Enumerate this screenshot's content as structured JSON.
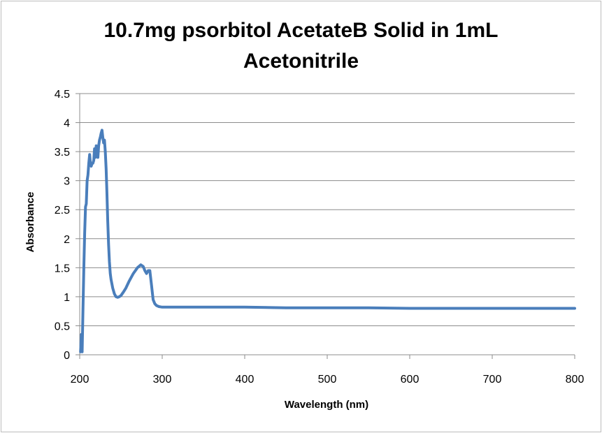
{
  "chart_data": {
    "type": "line",
    "title_lines": [
      "10.7mg psorbitol AcetateB Solid in 1mL",
      "Acetonitrile"
    ],
    "xlabel": "Wavelength (nm)",
    "ylabel": "Absorbance",
    "xlim": [
      200,
      800
    ],
    "ylim": [
      0,
      4.5
    ],
    "x_ticks": [
      200,
      300,
      400,
      500,
      600,
      700,
      800
    ],
    "y_ticks": [
      0,
      0.5,
      1,
      1.5,
      2,
      2.5,
      3,
      3.5,
      4,
      4.5
    ],
    "y_tick_labels": [
      "0",
      "0.5",
      "1",
      "1.5",
      "2",
      "2.5",
      "3",
      "3.5",
      "4",
      "4.5"
    ],
    "grid": true,
    "legend": "none",
    "series": [
      {
        "color": "#4a7ebb",
        "x": [
          201,
          202,
          203,
          204,
          205,
          206,
          207,
          208,
          209,
          210,
          211,
          212,
          213,
          214,
          215,
          216,
          217,
          218,
          219,
          220,
          221,
          222,
          223,
          224,
          225,
          226,
          227,
          228,
          229,
          230,
          231,
          232,
          233,
          234,
          235,
          236,
          237,
          238,
          240,
          242,
          244,
          246,
          248,
          250,
          253,
          256,
          260,
          265,
          270,
          274,
          277,
          279,
          281,
          283,
          285,
          287,
          289,
          291,
          293,
          296,
          300,
          310,
          330,
          360,
          400,
          450,
          500,
          550,
          600,
          650,
          700,
          750,
          800
        ],
        "y": [
          0.05,
          0.35,
          0.05,
          0.8,
          1.5,
          2.1,
          2.55,
          2.6,
          3.0,
          3.1,
          3.3,
          3.45,
          3.3,
          3.25,
          3.3,
          3.3,
          3.35,
          3.55,
          3.4,
          3.6,
          3.5,
          3.4,
          3.6,
          3.7,
          3.75,
          3.82,
          3.87,
          3.75,
          3.65,
          3.7,
          3.5,
          3.2,
          2.8,
          2.3,
          1.9,
          1.6,
          1.4,
          1.3,
          1.15,
          1.05,
          1.0,
          0.99,
          1.0,
          1.02,
          1.08,
          1.15,
          1.27,
          1.4,
          1.5,
          1.55,
          1.52,
          1.45,
          1.4,
          1.45,
          1.45,
          1.2,
          0.95,
          0.88,
          0.85,
          0.83,
          0.82,
          0.82,
          0.82,
          0.82,
          0.82,
          0.81,
          0.81,
          0.81,
          0.8,
          0.8,
          0.8,
          0.8,
          0.8
        ]
      }
    ]
  }
}
